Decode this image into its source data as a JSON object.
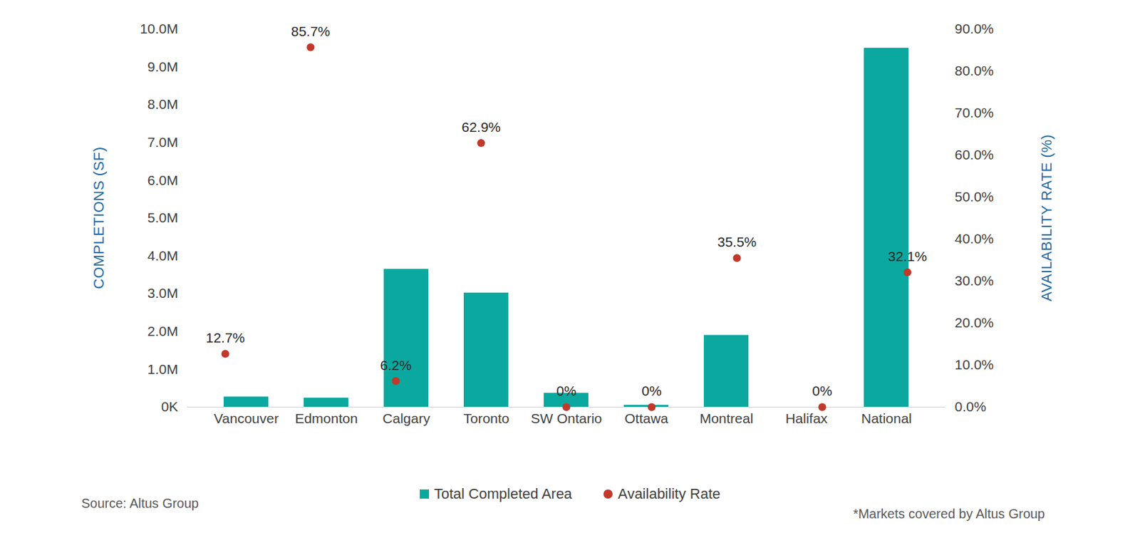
{
  "chart_data": {
    "type": "bar",
    "categories": [
      "Vancouver",
      "Edmonton",
      "Calgary",
      "Toronto",
      "SW Ontario",
      "Ottawa",
      "Montreal",
      "Halifax",
      "National"
    ],
    "series": [
      {
        "name": "Total Completed Area",
        "type": "bar",
        "color": "#0aa89e",
        "values": [
          270000,
          240000,
          3650000,
          3020000,
          370000,
          50000,
          1900000,
          0,
          9500000
        ]
      },
      {
        "name": "Availability Rate",
        "type": "scatter",
        "axis": "y2",
        "color": "#c0392b",
        "marker": "circle",
        "values": [
          12.7,
          85.7,
          6.2,
          62.9,
          0,
          0,
          35.5,
          0,
          32.1
        ],
        "value_labels": [
          "12.7%",
          "85.7%",
          "6.2%",
          "62.9%",
          "0%",
          "0%",
          "35.5%",
          "0%",
          "32.1%"
        ]
      }
    ],
    "ylabel": "COMPLETIONS (SF)",
    "y2label": "AVAILABILITY RATE (%)",
    "ylim": [
      0,
      10000000
    ],
    "yticks": [
      {
        "value": 0,
        "label": "0K"
      },
      {
        "value": 1000000,
        "label": "1.0M"
      },
      {
        "value": 2000000,
        "label": "2.0M"
      },
      {
        "value": 3000000,
        "label": "3.0M"
      },
      {
        "value": 4000000,
        "label": "4.0M"
      },
      {
        "value": 5000000,
        "label": "5.0M"
      },
      {
        "value": 6000000,
        "label": "6.0M"
      },
      {
        "value": 7000000,
        "label": "7.0M"
      },
      {
        "value": 8000000,
        "label": "8.0M"
      },
      {
        "value": 9000000,
        "label": "9.0M"
      },
      {
        "value": 10000000,
        "label": "10.0M"
      }
    ],
    "y2lim": [
      0,
      90
    ],
    "y2ticks": [
      {
        "value": 0,
        "label": "0.0%"
      },
      {
        "value": 10,
        "label": "10.0%"
      },
      {
        "value": 20,
        "label": "20.0%"
      },
      {
        "value": 30,
        "label": "30.0%"
      },
      {
        "value": 40,
        "label": "40.0%"
      },
      {
        "value": 50,
        "label": "50.0%"
      },
      {
        "value": 60,
        "label": "60.0%"
      },
      {
        "value": 70,
        "label": "70.0%"
      },
      {
        "value": 80,
        "label": "80.0%"
      },
      {
        "value": 90,
        "label": "90.0%"
      }
    ],
    "data_labels": true,
    "legend": "bottom",
    "source": "Source: Altus Group",
    "note": "*Markets covered by Altus Group"
  }
}
